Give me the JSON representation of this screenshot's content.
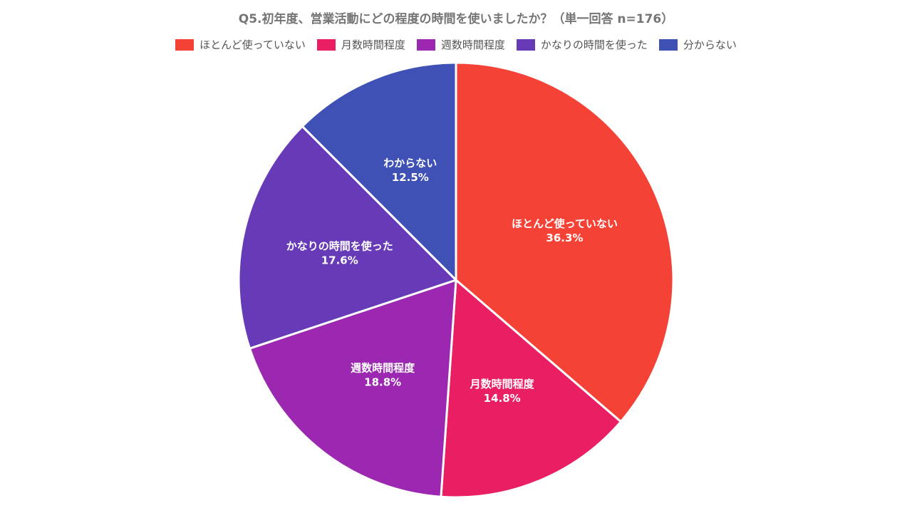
{
  "chart_data": {
    "type": "pie",
    "title": "Q5.初年度、営業活動にどの程度の時間を使いましたか？（単一回答 n=176）",
    "legend_placement": "top",
    "legend": [
      "ほとんど使っていない",
      "月数時間程度",
      "週数時間程度",
      "かなりの時間を使った",
      "分からない"
    ],
    "slices": [
      {
        "label": "ほとんど使っていない",
        "value": 36.3,
        "value_label": "36.3%",
        "color": "#f44336"
      },
      {
        "label": "月数時間程度",
        "value": 14.8,
        "value_label": "14.8%",
        "color": "#e91e63"
      },
      {
        "label": "週数時間程度",
        "value": 18.8,
        "value_label": "18.8%",
        "color": "#9c27b0"
      },
      {
        "label": "かなりの時間を使った",
        "value": 17.6,
        "value_label": "17.6%",
        "color": "#673ab7"
      },
      {
        "label": "わからない",
        "value": 12.5,
        "value_label": "12.5%",
        "color": "#3f51b5"
      }
    ]
  }
}
